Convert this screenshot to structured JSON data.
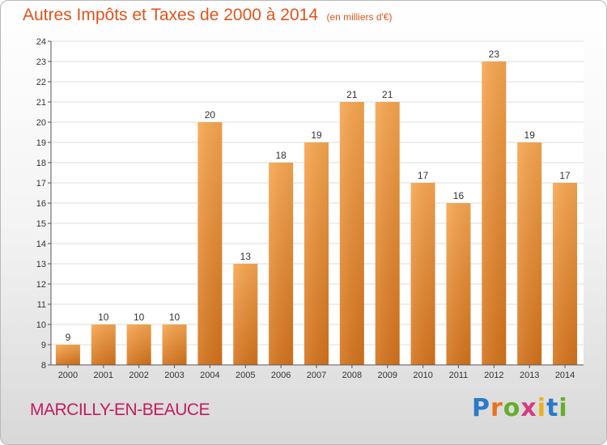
{
  "header": {
    "title": "Autres Impôts et Taxes de 2000 à 2014",
    "unit": "(en milliers d'€)"
  },
  "footer": {
    "city": "MARCILLY-EN-BEAUCE",
    "logo_letters": [
      "P",
      "r",
      "o",
      "x",
      "i",
      "t",
      "i"
    ],
    "logo_colors": [
      "#2a7ac7",
      "#e8731e",
      "#66ad2e",
      "#d63a7e",
      "#e8b21e",
      "#2a7ac7",
      "#66ad2e"
    ]
  },
  "colors": {
    "bar_light": "#f7a650",
    "bar_dark": "#d4731c",
    "plot_bg": "#ffffff",
    "grid": "#dddddd"
  },
  "chart_data": {
    "type": "bar",
    "title": "Autres Impôts et Taxes de 2000 à 2014",
    "categories": [
      "2000",
      "2001",
      "2002",
      "2003",
      "2004",
      "2005",
      "2006",
      "2007",
      "2008",
      "2009",
      "2010",
      "2011",
      "2012",
      "2013",
      "2014"
    ],
    "values": [
      9,
      10,
      10,
      10,
      20,
      13,
      18,
      19,
      21,
      21,
      17,
      16,
      23,
      19,
      17
    ],
    "ylim": [
      8,
      24
    ],
    "yticks": [
      8,
      9,
      10,
      11,
      12,
      13,
      14,
      15,
      16,
      17,
      18,
      19,
      20,
      21,
      22,
      23,
      24
    ],
    "grid": true,
    "xlabel": "",
    "ylabel": ""
  }
}
